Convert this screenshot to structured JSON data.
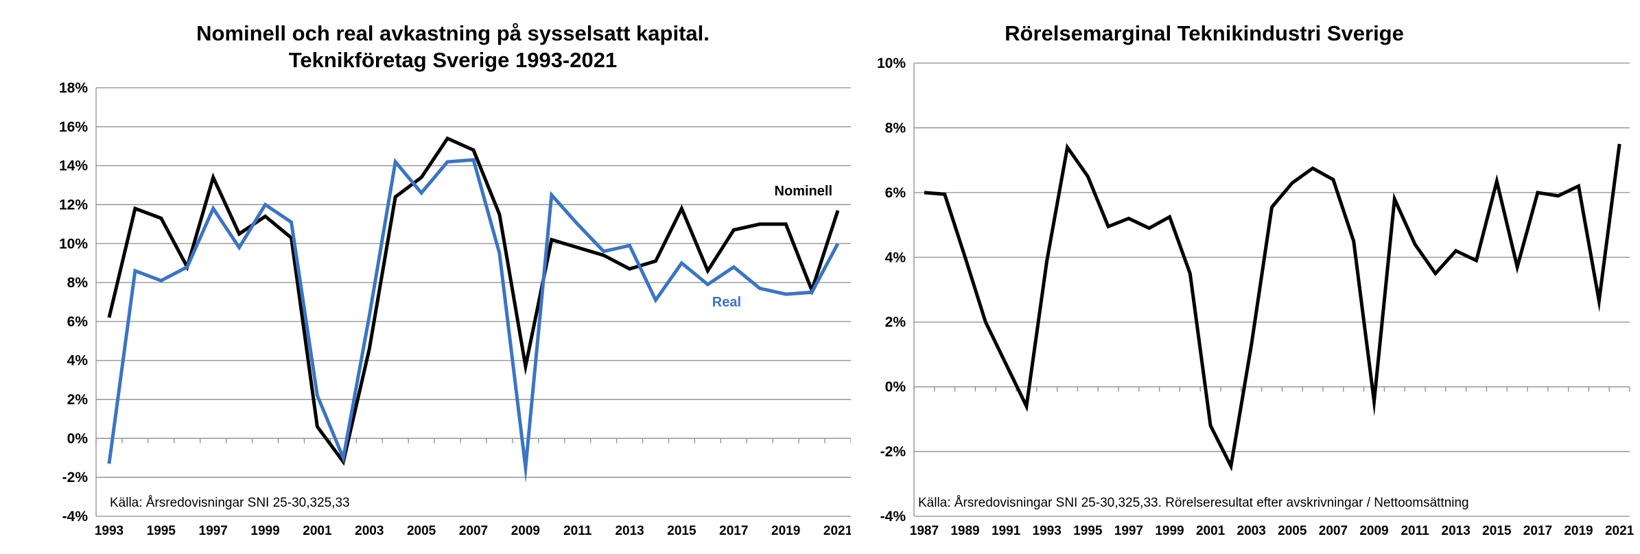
{
  "chart_data": [
    {
      "type": "line",
      "title": [
        "Nominell och real avkastning på sysselsatt kapital.",
        "Teknikföretag Sverige 1993-2021"
      ],
      "xlabel": "",
      "ylabel": "",
      "x": [
        1993,
        1994,
        1995,
        1996,
        1997,
        1998,
        1999,
        2000,
        2001,
        2002,
        2003,
        2004,
        2005,
        2006,
        2007,
        2008,
        2009,
        2010,
        2011,
        2012,
        2013,
        2014,
        2015,
        2016,
        2017,
        2018,
        2019,
        2020,
        2021
      ],
      "x_tick_labels": [
        "1993",
        "1995",
        "1997",
        "1999",
        "2001",
        "2003",
        "2005",
        "2007",
        "2009",
        "2011",
        "2013",
        "2015",
        "2017",
        "2019",
        "2021"
      ],
      "y_tick_labels": [
        "-4%",
        "-2%",
        "0%",
        "2%",
        "4%",
        "6%",
        "8%",
        "10%",
        "12%",
        "14%",
        "16%",
        "18%"
      ],
      "ylim": [
        -4,
        18
      ],
      "grid": true,
      "series": [
        {
          "name": "Nominell",
          "color": "#000000",
          "values": [
            6.2,
            11.8,
            11.3,
            8.8,
            13.4,
            10.5,
            11.4,
            10.3,
            0.6,
            -1.2,
            4.6,
            12.4,
            13.4,
            15.4,
            14.8,
            11.5,
            3.7,
            10.2,
            9.8,
            9.4,
            8.7,
            9.1,
            11.8,
            8.6,
            10.7,
            11.0,
            11.0,
            7.6,
            11.7
          ]
        },
        {
          "name": "Real",
          "color": "#3a75c4",
          "values": [
            -1.3,
            8.6,
            8.1,
            8.8,
            11.8,
            9.8,
            12.0,
            11.1,
            2.2,
            -1.0,
            6.3,
            14.2,
            12.6,
            14.2,
            14.3,
            9.5,
            -1.5,
            12.5,
            11.0,
            9.6,
            9.9,
            7.1,
            9.0,
            7.9,
            8.8,
            7.7,
            7.4,
            7.5,
            10.0
          ]
        }
      ],
      "source": "Källa: Årsredovisningar SNI 25-30,325,33"
    },
    {
      "type": "line",
      "title": [
        "Rörelsemarginal Teknikindustri Sverige"
      ],
      "xlabel": "",
      "ylabel": "",
      "x": [
        1987,
        1988,
        1989,
        1990,
        1991,
        1992,
        1993,
        1994,
        1995,
        1996,
        1997,
        1998,
        1999,
        2000,
        2001,
        2002,
        2003,
        2004,
        2005,
        2006,
        2007,
        2008,
        2009,
        2010,
        2011,
        2012,
        2013,
        2014,
        2015,
        2016,
        2017,
        2018,
        2019,
        2020,
        2021
      ],
      "x_tick_labels": [
        "1987",
        "1989",
        "1991",
        "1993",
        "1995",
        "1997",
        "1999",
        "2001",
        "2003",
        "2005",
        "2007",
        "2009",
        "2011",
        "2013",
        "2015",
        "2017",
        "2019",
        "2021"
      ],
      "y_tick_labels": [
        "-4%",
        "-2%",
        "0%",
        "2%",
        "4%",
        "6%",
        "8%",
        "10%"
      ],
      "ylim": [
        -4,
        10
      ],
      "grid": true,
      "series": [
        {
          "color": "#000000",
          "values": [
            6.0,
            5.95,
            4.0,
            2.0,
            0.7,
            -0.6,
            3.9,
            7.4,
            6.5,
            4.95,
            5.2,
            4.9,
            5.25,
            3.5,
            -1.2,
            -2.45,
            1.3,
            5.55,
            6.3,
            6.75,
            6.4,
            4.5,
            -0.45,
            5.8,
            4.4,
            3.5,
            4.2,
            3.9,
            6.35,
            3.7,
            6.0,
            5.9,
            6.2,
            2.65,
            7.5
          ]
        }
      ],
      "source": "Källa: Årsredovisningar SNI 25-30,325,33. Rörelseresultat efter avskrivningar / Nettoomsättning"
    }
  ]
}
